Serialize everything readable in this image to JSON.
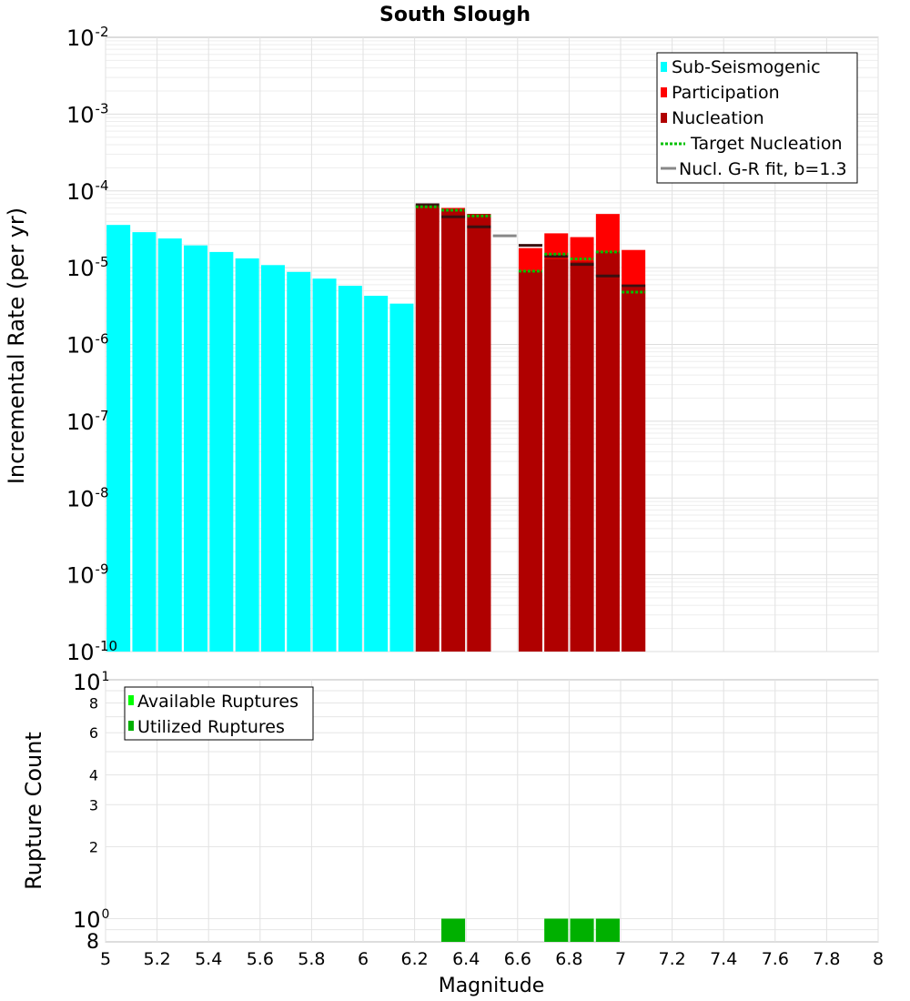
{
  "title": "South Slough",
  "chart_data": [
    {
      "type": "bar",
      "panel": "rates",
      "title": "South Slough",
      "xlabel": "",
      "ylabel": "Incremental Rate (per yr)",
      "yscale": "log",
      "xlim": [
        5,
        8
      ],
      "ylim": [
        1e-10,
        0.01
      ],
      "y_tick_exponents": [
        "-10",
        "-9",
        "-8",
        "-7",
        "-6",
        "-5",
        "-4",
        "-3",
        "-2"
      ],
      "grid": true,
      "legend_position": "top-right",
      "legend": [
        {
          "label": "Sub-Seismogenic",
          "color": "#00ffff",
          "style": "box"
        },
        {
          "label": "Participation",
          "color": "#ff0000",
          "style": "box"
        },
        {
          "label": "Nucleation",
          "color": "#b00000",
          "style": "box"
        },
        {
          "label": "Target Nucleation",
          "color": "#00c000",
          "style": "dotted"
        },
        {
          "label": "Nucl. G-R fit, b=1.3",
          "color": "#888888",
          "style": "line"
        }
      ],
      "series": [
        {
          "name": "Sub-Seismogenic",
          "color": "#00ffff",
          "x": [
            5.05,
            5.15,
            5.25,
            5.35,
            5.45,
            5.55,
            5.65,
            5.75,
            5.85,
            5.95,
            6.05,
            6.15
          ],
          "values": [
            3.6e-05,
            2.9e-05,
            2.4e-05,
            1.95e-05,
            1.6e-05,
            1.32e-05,
            1.08e-05,
            8.8e-06,
            7.2e-06,
            5.8e-06,
            4.3e-06,
            3.4e-06
          ]
        },
        {
          "name": "Participation",
          "color": "#ff0000",
          "x": [
            6.35,
            6.45,
            6.65,
            6.75,
            6.85,
            6.95,
            7.05
          ],
          "values": [
            6e-05,
            5e-05,
            1.8e-05,
            2.8e-05,
            2.5e-05,
            5e-05,
            1.7e-05
          ]
        },
        {
          "name": "Nucleation",
          "color": "#b00000",
          "x": [
            6.25,
            6.35,
            6.45,
            6.65,
            6.75,
            6.85,
            6.95,
            7.05
          ],
          "values": [
            6.5e-05,
            5.8e-05,
            5e-05,
            9e-06,
            1.3e-05,
            1.2e-05,
            1.6e-05,
            5.5e-06
          ]
        },
        {
          "name": "Target Nucleation",
          "color": "#00c000",
          "x": [
            6.25,
            6.35,
            6.45,
            6.65,
            6.75,
            6.85,
            6.95,
            7.05
          ],
          "values": [
            6.2e-05,
            5.6e-05,
            4.7e-05,
            9e-06,
            1.5e-05,
            1.3e-05,
            1.6e-05,
            4.8e-06
          ]
        },
        {
          "name": "Nucl. G-R fit, b=1.3",
          "color": "#888888",
          "x": [
            6.25,
            6.35,
            6.45,
            6.55,
            6.65,
            6.75,
            6.85,
            6.95,
            7.05
          ],
          "values": [
            6.6e-05,
            4.6e-05,
            3.4e-05,
            2.6e-05,
            1.95e-05,
            1.4e-05,
            1.1e-05,
            7.8e-06,
            5.8e-06
          ]
        }
      ]
    },
    {
      "type": "bar",
      "panel": "counts",
      "xlabel": "Magnitude",
      "ylabel": "Rupture Count",
      "yscale": "log",
      "xlim": [
        5,
        8
      ],
      "ylim": [
        0.8,
        10
      ],
      "x_ticks": [
        "5",
        "5.2",
        "5.4",
        "5.6",
        "5.8",
        "6",
        "6.2",
        "6.4",
        "6.6",
        "6.8",
        "7",
        "7.2",
        "7.4",
        "7.6",
        "7.8",
        "8"
      ],
      "y_tick_labels": [
        {
          "value": 8,
          "label": "8"
        },
        {
          "value": 6,
          "label": "6"
        },
        {
          "value": 4,
          "label": "4"
        },
        {
          "value": 3,
          "label": "3"
        },
        {
          "value": 2,
          "label": "2"
        }
      ],
      "y_bottom_label": "8",
      "grid": true,
      "legend_position": "top-left",
      "legend": [
        {
          "label": "Available Ruptures",
          "color": "#00ff00"
        },
        {
          "label": "Utilized Ruptures",
          "color": "#00b000"
        }
      ],
      "series": [
        {
          "name": "Available Ruptures",
          "color": "#00ff00",
          "x": [
            6.35,
            6.75,
            6.85,
            6.95
          ],
          "values": [
            1,
            1,
            1,
            1
          ]
        },
        {
          "name": "Utilized Ruptures",
          "color": "#00b000",
          "x": [
            6.35,
            6.75,
            6.85,
            6.95
          ],
          "values": [
            1,
            1,
            1,
            1
          ]
        }
      ]
    }
  ]
}
